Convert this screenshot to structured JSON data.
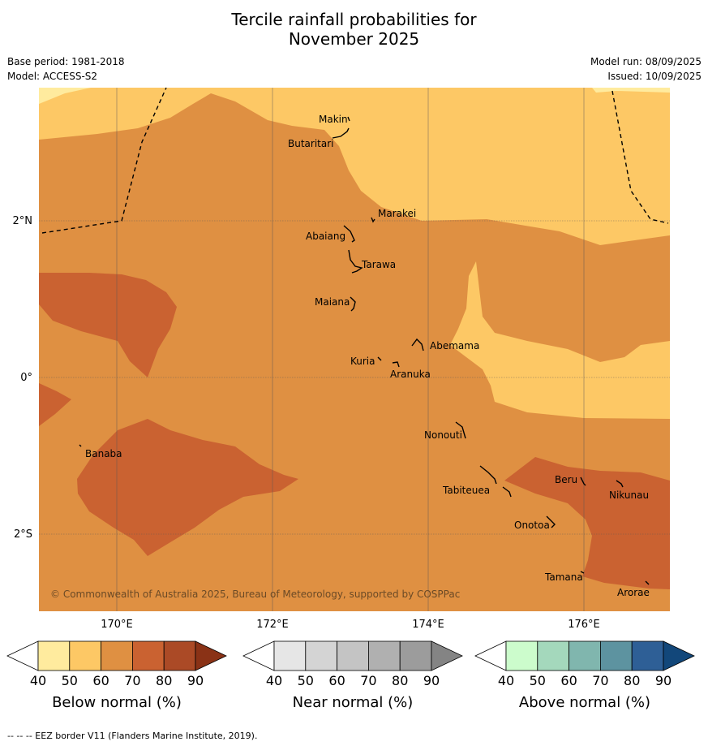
{
  "title_line1": "Tercile rainfall probabilities for",
  "title_line2": "November 2025",
  "base_period": "Base period: 1981-2018",
  "model": "Model: ACCESS-S2",
  "model_run": "Model run: 08/09/2025",
  "issued": "Issued: 10/09/2025",
  "copyright": "© Commonwealth of Australia 2025, Bureau of Meteorology, supported by COSPPac",
  "footnote": "-- -- -- EEZ border V11 (Flanders Marine Institute, 2019).",
  "lon_labels": [
    "170°E",
    "172°E",
    "174°E",
    "176°E"
  ],
  "lat_labels": [
    "2°N",
    "0°",
    "2°S"
  ],
  "islands": [
    "Makin",
    "Butaritari",
    "Marakei",
    "Abaiang",
    "Tarawa",
    "Maiana",
    "Abemama",
    "Kuria",
    "Aranuka",
    "Nonouti",
    "Banaba",
    "Beru",
    "Nikunau",
    "Tabiteuea",
    "Onotoa",
    "Tamana",
    "Arorae"
  ],
  "colorbars": [
    {
      "label": "Below normal (%)",
      "ticks": [
        "40",
        "50",
        "60",
        "70",
        "80",
        "90"
      ],
      "colors": [
        "#ffffff",
        "#ffeb9e",
        "#fdc865",
        "#df9042",
        "#ca6231",
        "#ab4a26",
        "#8a3216"
      ]
    },
    {
      "label": "Near normal (%)",
      "ticks": [
        "40",
        "50",
        "60",
        "70",
        "80",
        "90"
      ],
      "colors": [
        "#ffffff",
        "#e6e6e6",
        "#d4d4d4",
        "#c4c4c4",
        "#b0b0b0",
        "#9c9c9c",
        "#848484"
      ]
    },
    {
      "label": "Above normal (%)",
      "ticks": [
        "40",
        "50",
        "60",
        "70",
        "80",
        "90"
      ],
      "colors": [
        "#ffffff",
        "#ccfccc",
        "#a4d8bc",
        "#80b6ae",
        "#5d93a0",
        "#2e5f96",
        "#12477a"
      ]
    }
  ],
  "map_colors": {
    "c50": "#ffeb9e",
    "c60": "#fdc865",
    "c70": "#df9042",
    "c80": "#ca6231"
  }
}
